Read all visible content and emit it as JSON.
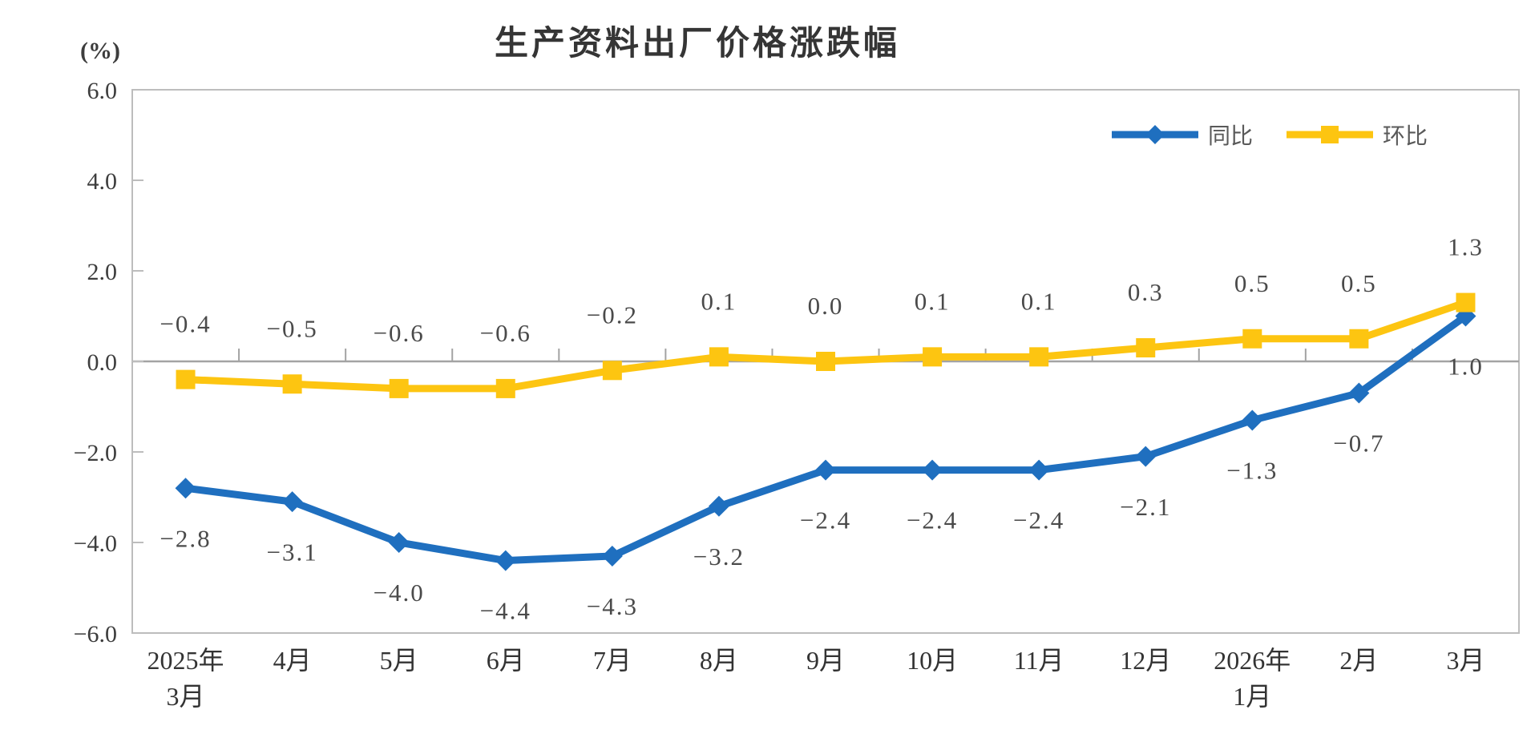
{
  "title": "生产资料出厂价格涨跌幅",
  "y_axis_unit": "(%)",
  "legend": {
    "series1_label": "同比",
    "series2_label": "环比"
  },
  "chart_data": {
    "type": "line",
    "title": "生产资料出厂价格涨跌幅",
    "ylabel": "(%)",
    "xlabel": "",
    "ylim": [
      -6.0,
      6.0
    ],
    "ytick_step": 2.0,
    "yticks": [
      "6.0",
      "4.0",
      "2.0",
      "0.0",
      "-2.0",
      "-4.0",
      "-6.0"
    ],
    "grid": false,
    "legend_position": "top-right",
    "categories": [
      "2025年3月",
      "4月",
      "5月",
      "6月",
      "7月",
      "8月",
      "9月",
      "10月",
      "11月",
      "12月",
      "2026年1月",
      "2月",
      "3月"
    ],
    "categories_lines": [
      [
        "2025年",
        "3月"
      ],
      [
        "4月"
      ],
      [
        "5月"
      ],
      [
        "6月"
      ],
      [
        "7月"
      ],
      [
        "8月"
      ],
      [
        "9月"
      ],
      [
        "10月"
      ],
      [
        "11月"
      ],
      [
        "12月"
      ],
      [
        "2026年",
        "1月"
      ],
      [
        "2月"
      ],
      [
        "3月"
      ]
    ],
    "series": [
      {
        "name": "同比",
        "color": "#1F6FBF",
        "marker": "diamond",
        "label_side": "below",
        "values": [
          -2.8,
          -3.1,
          -4.0,
          -4.4,
          -4.3,
          -3.2,
          -2.4,
          -2.4,
          -2.4,
          -2.1,
          -1.3,
          -0.7,
          1.0
        ]
      },
      {
        "name": "环比",
        "color": "#FDC511",
        "marker": "square",
        "label_side": "above",
        "values": [
          -0.4,
          -0.5,
          -0.6,
          -0.6,
          -0.2,
          0.1,
          0.0,
          0.1,
          0.1,
          0.3,
          0.5,
          0.5,
          1.3
        ]
      }
    ],
    "colors": {
      "axis": "#BDBDBD",
      "zero_line": "#A3A3A3",
      "tick_text": "#3d3d3d",
      "label_text": "#4a4a4a",
      "title_text": "#353535",
      "legend_text": "#595959"
    }
  }
}
